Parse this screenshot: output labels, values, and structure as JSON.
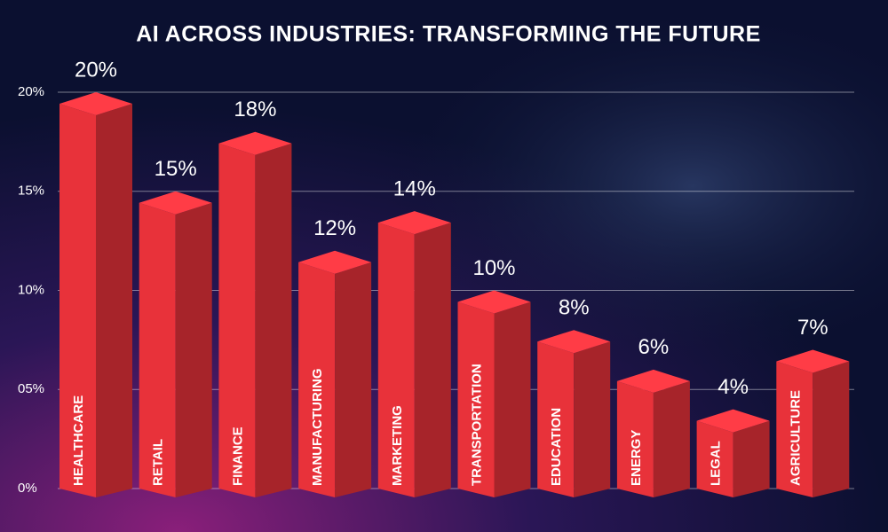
{
  "chart_data": {
    "type": "bar3d",
    "title": "AI ACROSS INDUSTRIES: TRANSFORMING THE FUTURE",
    "categories": [
      "HEALTHCARE",
      "RETAIL",
      "FINANCE",
      "MANUFACTURING",
      "MARKETING",
      "TRANSPORTATION",
      "EDUCATION",
      "ENERGY",
      "LEGAL",
      "AGRICULTURE"
    ],
    "values": [
      20,
      15,
      18,
      12,
      14,
      10,
      8,
      6,
      4,
      7
    ],
    "value_labels": [
      "20%",
      "15%",
      "18%",
      "12%",
      "14%",
      "10%",
      "8%",
      "6%",
      "4%",
      "7%"
    ],
    "color": "#e8323a",
    "ylim": [
      0,
      20
    ],
    "yticks": [
      {
        "value": 0,
        "label": "0%"
      },
      {
        "value": 5,
        "label": "05%"
      },
      {
        "value": 10,
        "label": "10%"
      },
      {
        "value": 15,
        "label": "15%"
      },
      {
        "value": 20,
        "label": "20%"
      }
    ],
    "grid": true
  }
}
